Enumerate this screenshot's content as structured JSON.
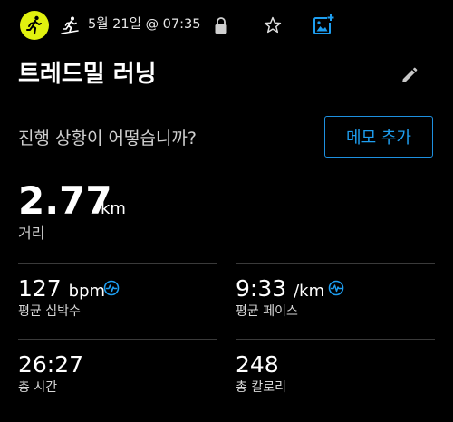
{
  "header": {
    "date_time": "5월 21일 @ 07:35",
    "avatar_icon": "runner-avatar-icon",
    "activity_icon": "treadmill-run-icon",
    "lock_icon": "lock-icon",
    "favorite_icon": "star-icon",
    "add_photo_icon": "add-photo-icon"
  },
  "activity": {
    "title": "트레드밀 러닝",
    "edit_icon": "pencil-icon"
  },
  "notes": {
    "question": "진행 상황이 어떻습니까?",
    "memo_button": "메모 추가"
  },
  "distance": {
    "value": "2.77",
    "unit": "km",
    "label": "거리"
  },
  "stats": {
    "heart_rate": {
      "value": "127",
      "unit": "bpm",
      "label": "평균 심박수"
    },
    "pace": {
      "value": "9:33",
      "unit": "/km",
      "label": "평균 페이스"
    },
    "time": {
      "value": "26:27",
      "label": "총 시간"
    },
    "calories": {
      "value": "248",
      "label": "총 칼로리"
    }
  },
  "colors": {
    "accent": "#1e9ef0",
    "avatar_bg": "#e1f20f",
    "background": "#000000",
    "divider": "#3a3a3a"
  }
}
